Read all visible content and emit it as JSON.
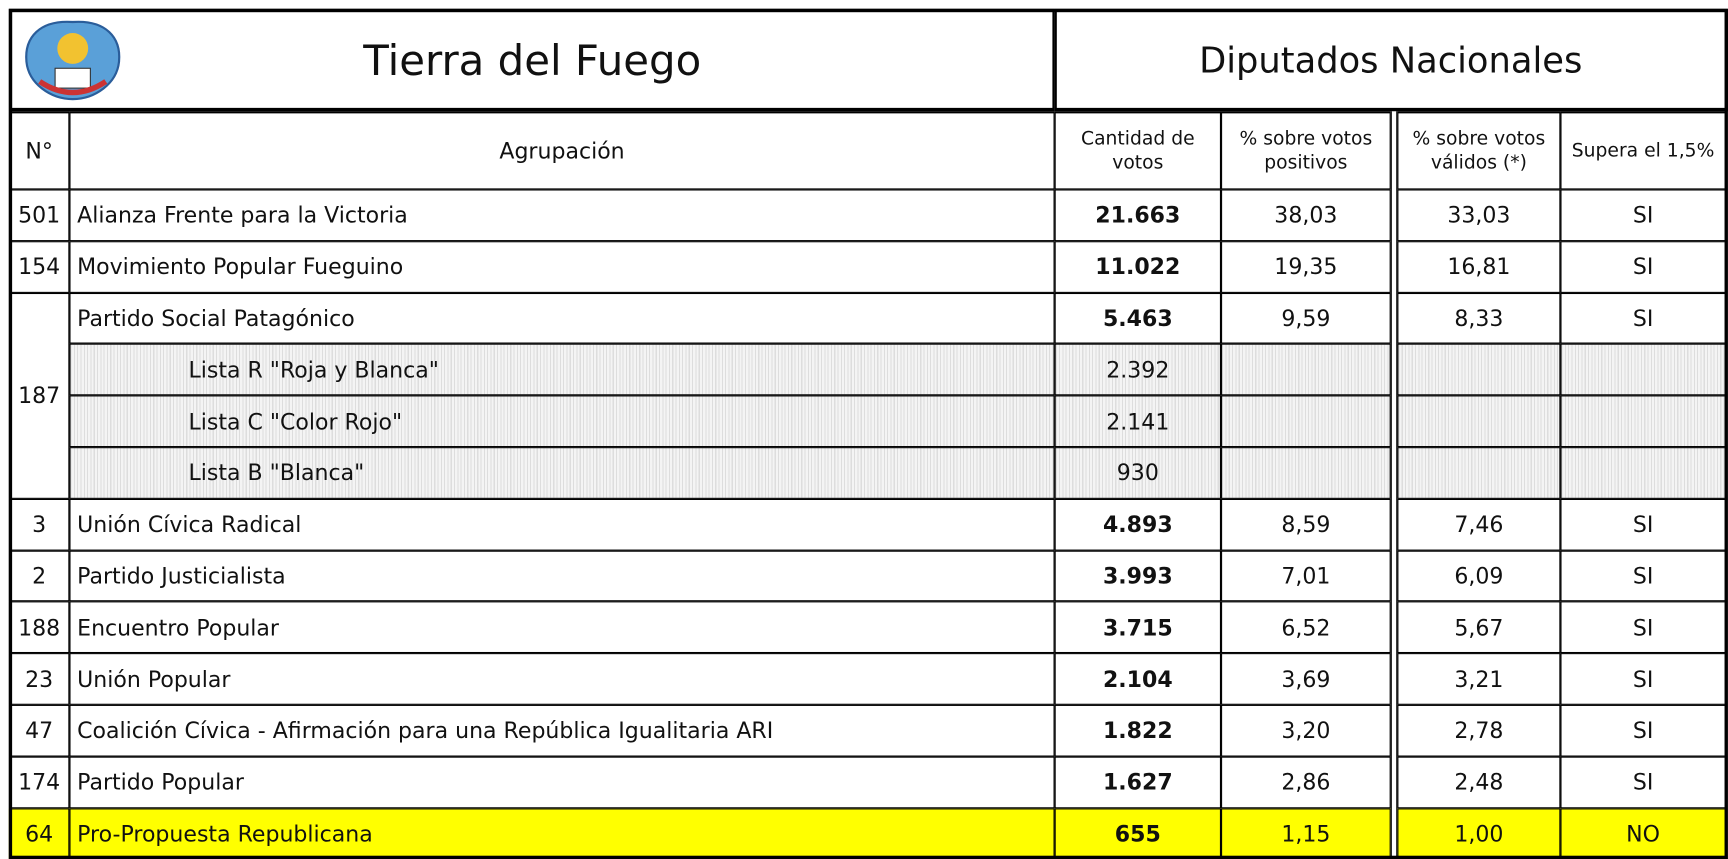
{
  "header": {
    "title": "Tierra del Fuego",
    "subtitle": "Diputados Nacionales"
  },
  "columns": [
    "N°",
    "Agrupación",
    "Cantidad de votos",
    "% sobre votos positivos",
    "% sobre votos válidos (*)",
    "Supera el 1,5%"
  ],
  "rows": [
    {
      "number": "501",
      "name": "Alianza Frente para la Victoria",
      "votes": "21.663",
      "pct_positive": "38,03",
      "pct_valid": "33,03",
      "exceeds": "SI"
    },
    {
      "number": "154",
      "name": "Movimiento Popular Fueguino",
      "votes": "11.022",
      "pct_positive": "19,35",
      "pct_valid": "16,81",
      "exceeds": "SI"
    },
    {
      "number": "187",
      "name": "Partido Social Patagónico",
      "votes": "5.463",
      "pct_positive": "9,59",
      "pct_valid": "8,33",
      "exceeds": "SI",
      "lists": [
        {
          "name": "Lista R \"Roja y Blanca\"",
          "votes": "2.392"
        },
        {
          "name": "Lista C \"Color Rojo\"",
          "votes": "2.141"
        },
        {
          "name": "Lista B \"Blanca\"",
          "votes": "930"
        }
      ]
    },
    {
      "number": "3",
      "name": "Unión Cívica Radical",
      "votes": "4.893",
      "pct_positive": "8,59",
      "pct_valid": "7,46",
      "exceeds": "SI"
    },
    {
      "number": "2",
      "name": "Partido Justicialista",
      "votes": "3.993",
      "pct_positive": "7,01",
      "pct_valid": "6,09",
      "exceeds": "SI"
    },
    {
      "number": "188",
      "name": "Encuentro Popular",
      "votes": "3.715",
      "pct_positive": "6,52",
      "pct_valid": "5,67",
      "exceeds": "SI"
    },
    {
      "number": "23",
      "name": "Unión Popular",
      "votes": "2.104",
      "pct_positive": "3,69",
      "pct_valid": "3,21",
      "exceeds": "SI"
    },
    {
      "number": "47",
      "name": "Coalición Cívica - Afirmación para una República Igualitaria ARI",
      "votes": "1.822",
      "pct_positive": "3,20",
      "pct_valid": "2,78",
      "exceeds": "SI"
    },
    {
      "number": "174",
      "name": "Partido Popular",
      "votes": "1.627",
      "pct_positive": "2,86",
      "pct_valid": "2,48",
      "exceeds": "SI"
    },
    {
      "number": "64",
      "name": "Pro-Propuesta Republicana",
      "votes": "655",
      "pct_positive": "1,15",
      "pct_valid": "1,00",
      "exceeds": "NO"
    }
  ]
}
